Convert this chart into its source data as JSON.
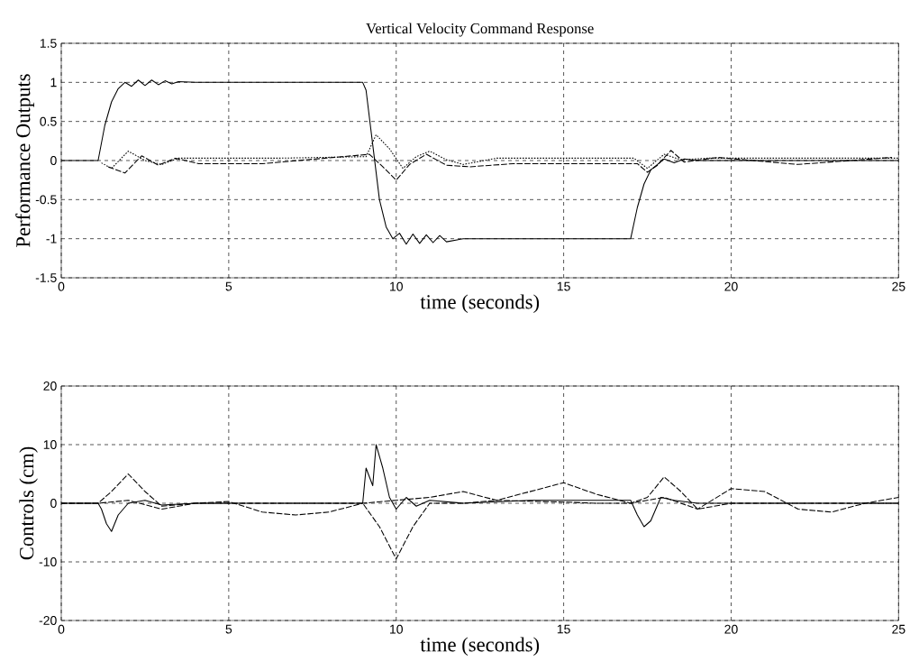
{
  "chart_data": [
    {
      "type": "line",
      "title": "Vertical Velocity Command Response",
      "xlabel": "time (seconds)",
      "ylabel": "Performance Outputs",
      "xlim": [
        0,
        25
      ],
      "xticks": [
        0,
        5,
        10,
        15,
        20,
        25
      ],
      "ylim": [
        -1.5,
        1.5
      ],
      "yticks": [
        -1.5,
        -1,
        -0.5,
        0,
        0.5,
        1,
        1.5
      ],
      "grid": true,
      "series": [
        {
          "color": "#000000",
          "line_style": "solid",
          "x": [
            0,
            1.1,
            1.3,
            1.5,
            1.7,
            1.9,
            2.1,
            2.3,
            2.5,
            2.7,
            2.9,
            3.1,
            3.3,
            3.5,
            4,
            5,
            6,
            7,
            8,
            9.0,
            9.1,
            9.3,
            9.5,
            9.7,
            9.9,
            10.1,
            10.3,
            10.5,
            10.7,
            10.9,
            11.1,
            11.3,
            11.5,
            12,
            13,
            14,
            15,
            16,
            17.0,
            17.2,
            17.4,
            17.6,
            17.8,
            18.0,
            18.3,
            18.6,
            19,
            20,
            22,
            25
          ],
          "values": [
            0,
            0,
            0.45,
            0.75,
            0.92,
            1.0,
            0.95,
            1.03,
            0.96,
            1.03,
            0.97,
            1.02,
            0.98,
            1.01,
            1.0,
            1.0,
            1.0,
            1.0,
            1.0,
            1.0,
            0.9,
            0.2,
            -0.5,
            -0.85,
            -1.0,
            -0.93,
            -1.07,
            -0.94,
            -1.06,
            -0.95,
            -1.05,
            -0.96,
            -1.04,
            -1.0,
            -1.0,
            -1.0,
            -1.0,
            -1.0,
            -1.0,
            -0.6,
            -0.3,
            -0.12,
            -0.05,
            0.02,
            -0.03,
            0.02,
            0.0,
            0.0,
            0.0,
            0.0
          ]
        },
        {
          "color": "#000000",
          "line_style": "dotted",
          "x": [
            1.2,
            1.5,
            2.0,
            2.5,
            3.0,
            3.5,
            4.2,
            6.5,
            9.1,
            9.4,
            9.8,
            10.2,
            10.6,
            11,
            11.5,
            12,
            13,
            15,
            17.1,
            17.5,
            18,
            18.5,
            19.3,
            22,
            25
          ],
          "values": [
            -0.03,
            -0.1,
            0.12,
            0.0,
            -0.05,
            0.03,
            0.03,
            0.03,
            0.05,
            0.33,
            0.15,
            -0.1,
            0.05,
            0.12,
            0.01,
            -0.05,
            0.03,
            0.03,
            0.03,
            -0.1,
            0.08,
            0.01,
            0.03,
            0.03,
            0.03
          ]
        },
        {
          "color": "#000000",
          "line_style": "dashed",
          "x": [
            1.4,
            1.9,
            2.4,
            2.9,
            3.4,
            4.1,
            6,
            9.2,
            9.6,
            10.0,
            10.4,
            10.9,
            11.5,
            12.2,
            13.5,
            15,
            17.2,
            17.5,
            17.8,
            18.2,
            18.6,
            19.6,
            22,
            24.8
          ],
          "values": [
            -0.08,
            -0.16,
            0.06,
            -0.06,
            0.03,
            -0.04,
            -0.04,
            0.08,
            -0.08,
            -0.25,
            -0.05,
            0.08,
            -0.06,
            -0.08,
            -0.04,
            -0.04,
            -0.04,
            -0.15,
            -0.06,
            0.13,
            -0.02,
            0.04,
            -0.05,
            0.04
          ]
        }
      ]
    },
    {
      "type": "line",
      "xlabel": "time (seconds)",
      "ylabel": "Controls (cm)",
      "xlim": [
        0,
        25
      ],
      "xticks": [
        0,
        5,
        10,
        15,
        20,
        25
      ],
      "ylim": [
        -20,
        20
      ],
      "yticks": [
        -20,
        -10,
        0,
        10,
        20
      ],
      "grid": true,
      "series": [
        {
          "color": "#000000",
          "line_style": "solid",
          "x": [
            0,
            1.1,
            1.2,
            1.35,
            1.5,
            1.7,
            2,
            2.5,
            3,
            4,
            9.0,
            9.1,
            9.3,
            9.4,
            9.6,
            9.8,
            10.0,
            10.3,
            10.6,
            11,
            12,
            14,
            16,
            17.0,
            17.2,
            17.4,
            17.6,
            17.9,
            18.3,
            19,
            20,
            25
          ],
          "values": [
            0,
            0,
            -1,
            -3.5,
            -4.8,
            -2,
            0,
            0.5,
            -0.3,
            0,
            0,
            6,
            3,
            10,
            6,
            1,
            -1,
            1,
            -0.5,
            0.5,
            0,
            0.5,
            0.5,
            0.5,
            -2,
            -4,
            -3,
            1,
            0.5,
            0,
            0,
            0
          ]
        },
        {
          "color": "#000000",
          "line_style": "dashed",
          "x": [
            0,
            1.1,
            1.5,
            2.0,
            2.5,
            3,
            4,
            5,
            6,
            7,
            8,
            9,
            9.5,
            10.0,
            10.5,
            11,
            12,
            13,
            15,
            16,
            17,
            17.5,
            18,
            18.5,
            19,
            20,
            21,
            25
          ],
          "values": [
            0,
            0,
            2,
            5,
            2,
            -0.5,
            0,
            0,
            0,
            0,
            0,
            0,
            -4,
            -9.5,
            -4,
            0,
            0,
            0.5,
            0.2,
            0,
            0,
            1,
            4.5,
            2,
            -1,
            0,
            0,
            0
          ]
        },
        {
          "color": "#000000",
          "line_style": "dashed",
          "x": [
            0,
            1.1,
            2,
            3,
            4,
            5,
            6,
            7,
            8,
            9,
            10,
            11,
            12,
            13,
            14,
            15,
            16,
            17,
            18,
            19,
            20,
            21,
            22,
            23,
            24,
            25
          ],
          "values": [
            0,
            0,
            0.5,
            -1,
            0,
            0.3,
            -1.5,
            -2,
            -1.5,
            0,
            0.5,
            1,
            2,
            0.5,
            2,
            3.5,
            1.5,
            0,
            1,
            -1,
            2.5,
            2,
            -1,
            -1.5,
            0,
            1
          ]
        }
      ]
    }
  ]
}
